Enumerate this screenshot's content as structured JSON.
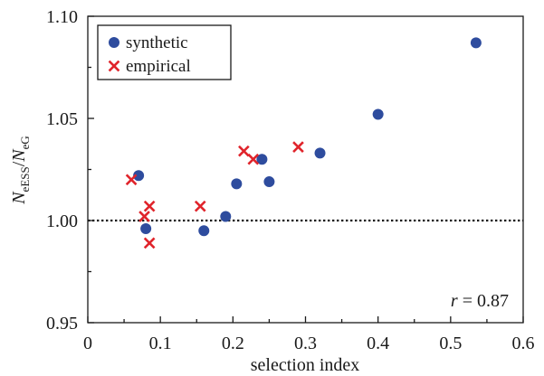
{
  "chart_data": {
    "type": "scatter",
    "title": "",
    "xlabel": "selection index",
    "ylabel": {
      "main": "N",
      "sub1": "eESS",
      "slash": "/",
      "main2": "N",
      "sub2": "eG"
    },
    "xlim": [
      0,
      0.6
    ],
    "ylim": [
      0.95,
      1.1
    ],
    "x_ticks": [
      "0",
      "0.1",
      "0.2",
      "0.3",
      "0.4",
      "0.5",
      "0.6"
    ],
    "y_ticks": [
      "0.95",
      "1.00",
      "1.05",
      "1.10"
    ],
    "grid": false,
    "legend_position": "top-left",
    "reference_line": {
      "y": 1.0,
      "style": "dotted"
    },
    "annotation": {
      "symbol": "r",
      "text": " = 0.87",
      "position": "bottom-right"
    },
    "series": [
      {
        "name": "synthetic",
        "marker": "circle",
        "color": "#2E4C9E",
        "points": [
          {
            "x": 0.07,
            "y": 1.022
          },
          {
            "x": 0.08,
            "y": 0.996
          },
          {
            "x": 0.16,
            "y": 0.995
          },
          {
            "x": 0.19,
            "y": 1.002
          },
          {
            "x": 0.205,
            "y": 1.018
          },
          {
            "x": 0.24,
            "y": 1.03
          },
          {
            "x": 0.25,
            "y": 1.019
          },
          {
            "x": 0.32,
            "y": 1.033
          },
          {
            "x": 0.4,
            "y": 1.052
          },
          {
            "x": 0.535,
            "y": 1.087
          }
        ]
      },
      {
        "name": "empirical",
        "marker": "cross",
        "color": "#E0242B",
        "points": [
          {
            "x": 0.06,
            "y": 1.02
          },
          {
            "x": 0.078,
            "y": 1.002
          },
          {
            "x": 0.085,
            "y": 1.007
          },
          {
            "x": 0.085,
            "y": 0.989
          },
          {
            "x": 0.155,
            "y": 1.007
          },
          {
            "x": 0.215,
            "y": 1.034
          },
          {
            "x": 0.228,
            "y": 1.03
          },
          {
            "x": 0.29,
            "y": 1.036
          }
        ]
      }
    ]
  }
}
